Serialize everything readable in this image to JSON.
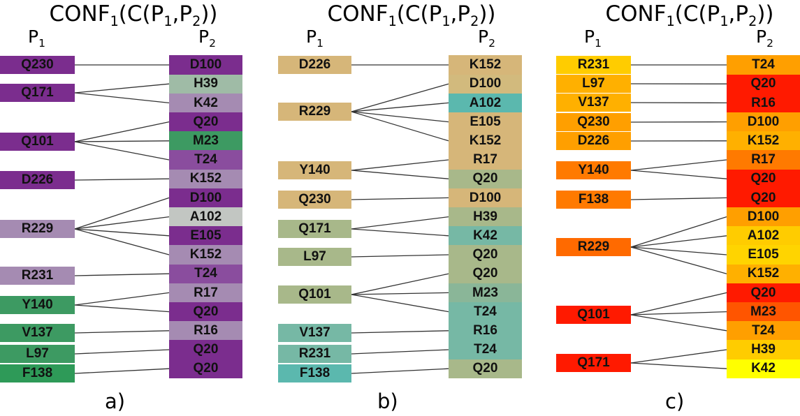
{
  "panels": [
    {
      "title": "CONF",
      "title_sub": "1",
      "title_args": "(C(P",
      "title_s1": "1",
      "title_comma": ",P",
      "title_s2": "2",
      "title_close": "))",
      "p1_label": "P",
      "p1_sub": "1",
      "p2_label": "P",
      "p2_sub": "2",
      "caption": "a)",
      "left": [
        {
          "label": "Q230",
          "color": "#7b2d8e"
        },
        {
          "label": "Q171",
          "color": "#7b2d8e"
        },
        {
          "label": "Q101",
          "color": "#7b2d8e"
        },
        {
          "label": "D226",
          "color": "#7b2d8e"
        },
        {
          "label": "R229",
          "color": "#a58bb2"
        },
        {
          "label": "R231",
          "color": "#a58bb2"
        },
        {
          "label": "Y140",
          "color": "#3d9a62"
        },
        {
          "label": "V137",
          "color": "#3d9a62"
        },
        {
          "label": "L97",
          "color": "#3d9a62"
        },
        {
          "label": "F138",
          "color": "#2e9a58"
        }
      ],
      "right": [
        {
          "label": "D100",
          "color": "#7b2d8e"
        },
        {
          "label": "H39",
          "color": "#9fbba6"
        },
        {
          "label": "K42",
          "color": "#a58bb2"
        },
        {
          "label": "Q20",
          "color": "#7b2d8e"
        },
        {
          "label": "M23",
          "color": "#3d9a62"
        },
        {
          "label": "T24",
          "color": "#8a4d9e"
        },
        {
          "label": "K152",
          "color": "#a58bb2"
        },
        {
          "label": "D100",
          "color": "#7b2d8e"
        },
        {
          "label": "A102",
          "color": "#c2c6c2"
        },
        {
          "label": "E105",
          "color": "#7b2d8e"
        },
        {
          "label": "K152",
          "color": "#a58bb2"
        },
        {
          "label": "T24",
          "color": "#8a4d9e"
        },
        {
          "label": "R17",
          "color": "#a58bb2"
        },
        {
          "label": "Q20",
          "color": "#7b2d8e"
        },
        {
          "label": "R16",
          "color": "#a58bb2"
        },
        {
          "label": "Q20",
          "color": "#7b2d8e"
        },
        {
          "label": "Q20",
          "color": "#7b2d8e"
        }
      ],
      "links": [
        [
          0,
          0
        ],
        [
          1,
          1
        ],
        [
          1,
          2
        ],
        [
          2,
          3
        ],
        [
          2,
          4
        ],
        [
          2,
          5
        ],
        [
          3,
          6
        ],
        [
          4,
          7
        ],
        [
          4,
          8
        ],
        [
          4,
          9
        ],
        [
          4,
          10
        ],
        [
          5,
          11
        ],
        [
          6,
          12
        ],
        [
          6,
          13
        ],
        [
          7,
          14
        ],
        [
          8,
          15
        ],
        [
          9,
          16
        ]
      ]
    },
    {
      "title": "CONF",
      "title_sub": "1",
      "title_args": "(C(P",
      "title_s1": "1",
      "title_comma": ",P",
      "title_s2": "2",
      "title_close": "))",
      "p1_label": "P",
      "p1_sub": "1",
      "p2_label": "P",
      "p2_sub": "2",
      "caption": "b)",
      "left": [
        {
          "label": "D226",
          "color": "#d6b679"
        },
        {
          "label": "R229",
          "color": "#d6b679"
        },
        {
          "label": "Y140",
          "color": "#d6b679"
        },
        {
          "label": "Q230",
          "color": "#d6b679"
        },
        {
          "label": "Q171",
          "color": "#a8b88a"
        },
        {
          "label": "L97",
          "color": "#a8b88a"
        },
        {
          "label": "Q101",
          "color": "#a8b88a"
        },
        {
          "label": "V137",
          "color": "#76b8a5"
        },
        {
          "label": "R231",
          "color": "#76b8a5"
        },
        {
          "label": "F138",
          "color": "#5bb8ae"
        }
      ],
      "right": [
        {
          "label": "K152",
          "color": "#d6b679"
        },
        {
          "label": "D100",
          "color": "#d2ba7d"
        },
        {
          "label": "A102",
          "color": "#5bb8ae"
        },
        {
          "label": "E105",
          "color": "#d6b679"
        },
        {
          "label": "K152",
          "color": "#d6b679"
        },
        {
          "label": "R17",
          "color": "#d6b679"
        },
        {
          "label": "Q20",
          "color": "#a8b88a"
        },
        {
          "label": "D100",
          "color": "#d6b679"
        },
        {
          "label": "H39",
          "color": "#a8b88a"
        },
        {
          "label": "K42",
          "color": "#76b8a5"
        },
        {
          "label": "Q20",
          "color": "#a8b88a"
        },
        {
          "label": "Q20",
          "color": "#a8b88a"
        },
        {
          "label": "M23",
          "color": "#8ab698"
        },
        {
          "label": "T24",
          "color": "#76b8a5"
        },
        {
          "label": "R16",
          "color": "#76b8a5"
        },
        {
          "label": "T24",
          "color": "#76b8a5"
        },
        {
          "label": "Q20",
          "color": "#a8b88a"
        }
      ],
      "links": [
        [
          0,
          0
        ],
        [
          1,
          1
        ],
        [
          1,
          2
        ],
        [
          1,
          3
        ],
        [
          1,
          4
        ],
        [
          2,
          5
        ],
        [
          2,
          6
        ],
        [
          3,
          7
        ],
        [
          4,
          8
        ],
        [
          4,
          9
        ],
        [
          5,
          10
        ],
        [
          6,
          11
        ],
        [
          6,
          12
        ],
        [
          6,
          13
        ],
        [
          7,
          14
        ],
        [
          8,
          15
        ],
        [
          9,
          16
        ]
      ]
    },
    {
      "title": "CONF",
      "title_sub": "1",
      "title_args": "(C(P",
      "title_s1": "1",
      "title_comma": ",P",
      "title_s2": "2",
      "title_close": "))",
      "p1_label": "P",
      "p1_sub": "1",
      "p2_label": "P",
      "p2_sub": "2",
      "caption": "c)",
      "left": [
        {
          "label": "R231",
          "color": "#ffcc00"
        },
        {
          "label": "L97",
          "color": "#ffb000"
        },
        {
          "label": "V137",
          "color": "#ffb000"
        },
        {
          "label": "Q230",
          "color": "#ff9f00"
        },
        {
          "label": "D226",
          "color": "#ff9f00"
        },
        {
          "label": "Y140",
          "color": "#ff7a00"
        },
        {
          "label": "F138",
          "color": "#ff7a00"
        },
        {
          "label": "R229",
          "color": "#ff6a00"
        },
        {
          "label": "Q101",
          "color": "#ff1a00"
        },
        {
          "label": "Q171",
          "color": "#ff1a00"
        }
      ],
      "right": [
        {
          "label": "T24",
          "color": "#ff9f00"
        },
        {
          "label": "Q20",
          "color": "#ff1a00"
        },
        {
          "label": "R16",
          "color": "#ff1a00"
        },
        {
          "label": "D100",
          "color": "#ff9f00"
        },
        {
          "label": "K152",
          "color": "#ffb000"
        },
        {
          "label": "R17",
          "color": "#ff7a00"
        },
        {
          "label": "Q20",
          "color": "#ff1a00"
        },
        {
          "label": "Q20",
          "color": "#ff1a00"
        },
        {
          "label": "D100",
          "color": "#ff9f00"
        },
        {
          "label": "A102",
          "color": "#ffcc00"
        },
        {
          "label": "E105",
          "color": "#ffd400"
        },
        {
          "label": "K152",
          "color": "#ffb000"
        },
        {
          "label": "Q20",
          "color": "#ff1a00"
        },
        {
          "label": "M23",
          "color": "#ff5500"
        },
        {
          "label": "T24",
          "color": "#ff9f00"
        },
        {
          "label": "H39",
          "color": "#ffcc00"
        },
        {
          "label": "K42",
          "color": "#ffff00"
        }
      ],
      "links": [
        [
          0,
          0
        ],
        [
          1,
          1
        ],
        [
          2,
          2
        ],
        [
          3,
          3
        ],
        [
          4,
          4
        ],
        [
          5,
          5
        ],
        [
          5,
          6
        ],
        [
          6,
          7
        ],
        [
          7,
          8
        ],
        [
          7,
          9
        ],
        [
          7,
          10
        ],
        [
          7,
          11
        ],
        [
          8,
          12
        ],
        [
          8,
          13
        ],
        [
          8,
          14
        ],
        [
          9,
          15
        ],
        [
          9,
          16
        ]
      ]
    }
  ]
}
